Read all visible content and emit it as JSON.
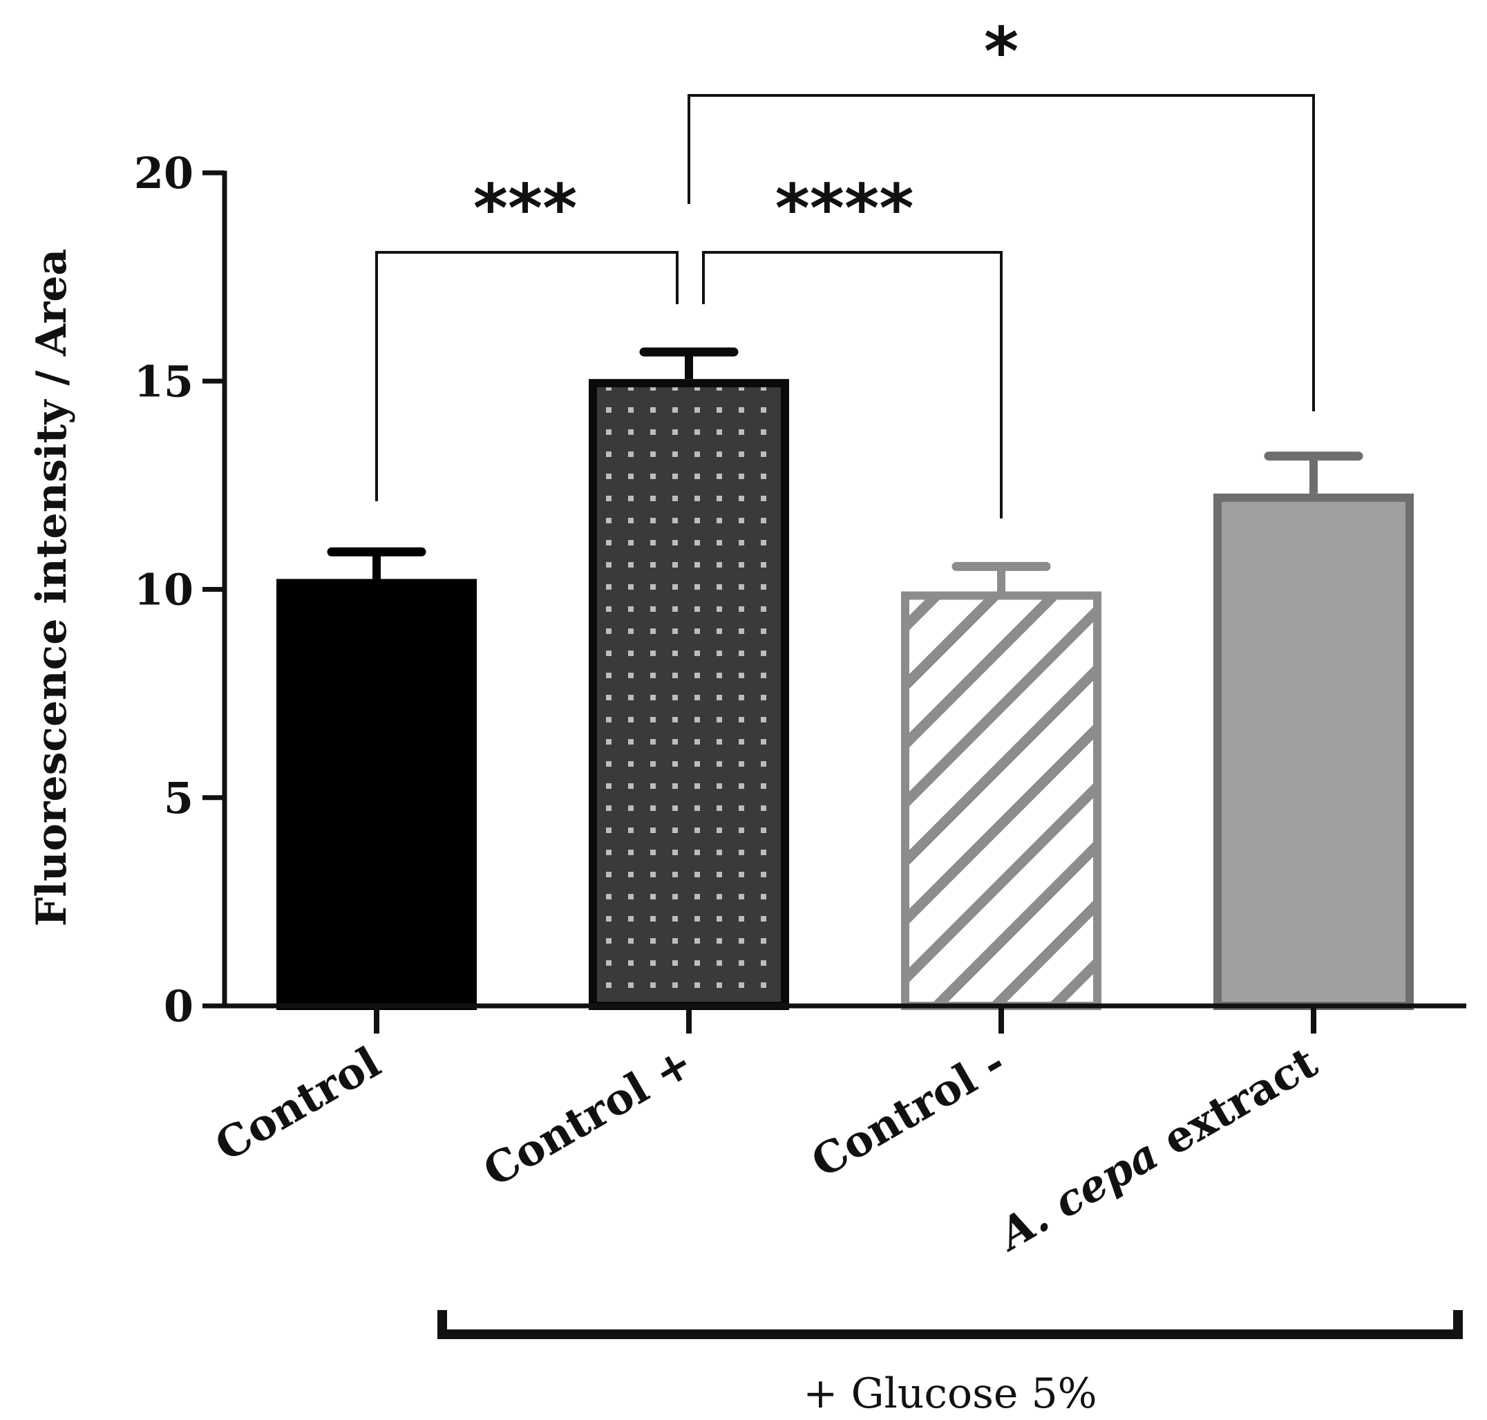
{
  "chart_data": {
    "type": "bar",
    "title": "",
    "xlabel": "",
    "ylabel": "Fluorescence intensity / Area",
    "ylim": [
      0,
      20
    ],
    "yticks": [
      "0",
      "5",
      "10",
      "15",
      "20"
    ],
    "categories": [
      {
        "prefix": "",
        "italic": "",
        "suffix": "Control"
      },
      {
        "prefix": "",
        "italic": "",
        "suffix": "Control +"
      },
      {
        "prefix": "",
        "italic": "",
        "suffix": "Control -"
      },
      {
        "prefix": "",
        "italic": "A. cepa",
        "suffix": " extract"
      }
    ],
    "values": [
      10.25,
      15.05,
      9.95,
      12.3
    ],
    "errors": [
      0.65,
      0.65,
      0.6,
      0.9
    ],
    "styles": [
      {
        "fill": "#000000",
        "stroke": "#000000",
        "pattern": "solid"
      },
      {
        "fill": "#3a3a3a",
        "stroke": "#0a0a0a",
        "pattern": "dots",
        "dot": "#bdbdbd"
      },
      {
        "fill": "#ffffff",
        "stroke": "#8c8c8c",
        "pattern": "hatch",
        "hatch": "#8c8c8c"
      },
      {
        "fill": "#a0a0a0",
        "stroke": "#6e6e6e",
        "pattern": "solid"
      }
    ],
    "significance": [
      {
        "from": 1,
        "to": 0,
        "label": "***"
      },
      {
        "from": 1,
        "to": 2,
        "label": "****"
      },
      {
        "from": 1,
        "to": 3,
        "label": "*"
      }
    ],
    "group": {
      "label": "+ Glucose 5%",
      "from": 1,
      "to": 3
    }
  }
}
